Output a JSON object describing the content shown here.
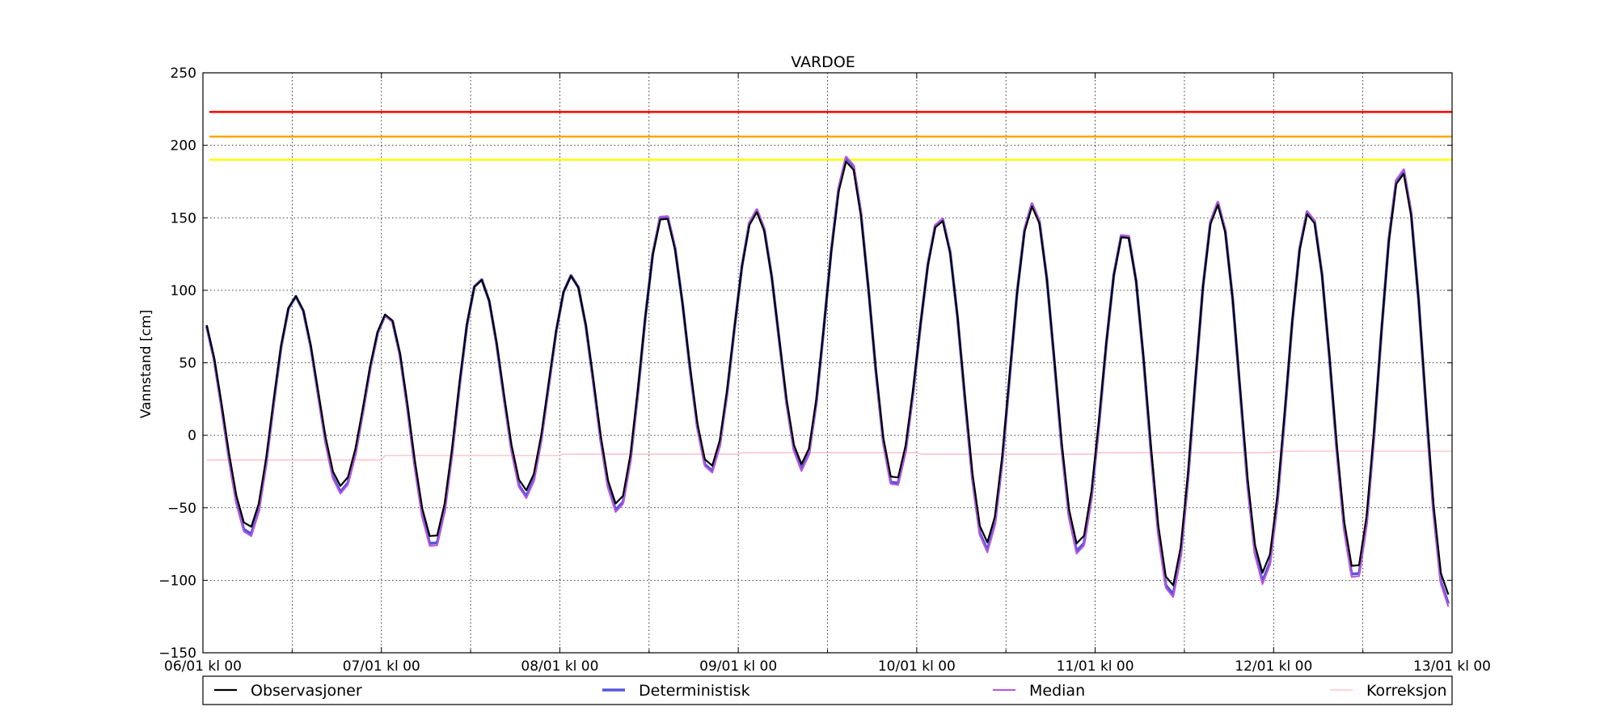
{
  "chart_data": {
    "type": "line",
    "title": "VARDOE",
    "xlabel": "",
    "ylabel": "Vannstand [cm]",
    "ylim": [
      -150,
      250
    ],
    "yticks": [
      -150,
      -100,
      -50,
      0,
      50,
      100,
      150,
      200,
      250
    ],
    "xlim_hours": [
      0,
      168
    ],
    "xticks": [
      {
        "hour": 0,
        "label": "06/01 kl 00"
      },
      {
        "hour": 24,
        "label": "07/01 kl 00"
      },
      {
        "hour": 48,
        "label": "08/01 kl 00"
      },
      {
        "hour": 72,
        "label": "09/01 kl 00"
      },
      {
        "hour": 96,
        "label": "10/01 kl 00"
      },
      {
        "hour": 120,
        "label": "11/01 kl 00"
      },
      {
        "hour": 144,
        "label": "12/01 kl 00"
      },
      {
        "hour": 168,
        "label": "13/01 kl 00"
      }
    ],
    "minor_grid_hours": [
      12,
      36,
      60,
      84,
      108,
      132,
      156
    ],
    "grid": true,
    "legend_position": "bottom",
    "thresholds": [
      {
        "value": 223,
        "color": "#ff0000"
      },
      {
        "value": 206,
        "color": "#ffa500"
      },
      {
        "value": 190,
        "color": "#ffff00"
      }
    ],
    "tide": {
      "high": [
        [
          -0.5,
          84
        ],
        [
          12.4,
          96
        ],
        [
          24.8,
          84
        ],
        [
          37.2,
          108
        ],
        [
          49.6,
          110
        ],
        [
          62.0,
          152
        ],
        [
          74.4,
          154
        ],
        [
          86.8,
          190
        ],
        [
          99.2,
          149
        ],
        [
          111.6,
          158
        ],
        [
          124.0,
          140
        ],
        [
          136.4,
          159
        ],
        [
          148.8,
          154
        ],
        [
          161.2,
          182
        ],
        [
          173.6,
          180
        ]
      ],
      "low": [
        [
          6.2,
          -64
        ],
        [
          18.6,
          -35
        ],
        [
          31.0,
          -72
        ],
        [
          43.4,
          -38
        ],
        [
          55.8,
          -48
        ],
        [
          68.2,
          -22
        ],
        [
          80.6,
          -20
        ],
        [
          93.0,
          -32
        ],
        [
          105.4,
          -74
        ],
        [
          117.8,
          -76
        ],
        [
          130.2,
          -105
        ],
        [
          142.6,
          -95
        ],
        [
          155.0,
          -94
        ],
        [
          167.4,
          -110
        ]
      ]
    },
    "series": [
      {
        "name": "Observasjoner",
        "color": "#000000",
        "width": 2.2,
        "mode": "tide",
        "amp": 1.0,
        "offset": 0
      },
      {
        "name": "Deterministisk",
        "color": "#5555dd",
        "width": 3.5,
        "mode": "tide",
        "amp": 1.03,
        "offset": -3
      },
      {
        "name": "Median",
        "color": "#bb55dd",
        "width": 2.0,
        "mode": "tide",
        "amp": 1.04,
        "offset": -4
      },
      {
        "name": "Korreksjon",
        "color": "#ffb6c1",
        "width": 1.2,
        "mode": "steps",
        "steps": [
          [
            0,
            -17
          ],
          [
            24,
            -17
          ],
          [
            24.5,
            -14
          ],
          [
            48,
            -14
          ],
          [
            48.5,
            -13
          ],
          [
            72,
            -13
          ],
          [
            72.5,
            -12
          ],
          [
            96,
            -12
          ],
          [
            96.5,
            -13
          ],
          [
            120,
            -13
          ],
          [
            120.5,
            -12
          ],
          [
            144,
            -12
          ],
          [
            144.5,
            -11
          ],
          [
            168,
            -11
          ]
        ]
      }
    ]
  }
}
